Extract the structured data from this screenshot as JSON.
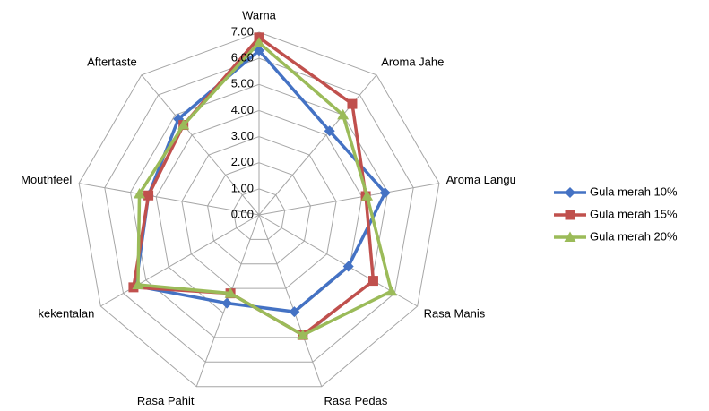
{
  "chart_data": {
    "type": "radar",
    "categories": [
      "Warna",
      "Aroma Jahe",
      "Aroma Langu",
      "Rasa Manis",
      "Rasa Pedas",
      "Rasa Pahit",
      "kekentalan",
      "Mouthfeel",
      "Aftertaste"
    ],
    "series": [
      {
        "name": "Gula merah 10%",
        "color": "#4472c4",
        "marker": "diamond",
        "values": [
          6.3,
          4.2,
          4.9,
          3.95,
          3.95,
          3.6,
          5.45,
          4.3,
          4.8
        ]
      },
      {
        "name": "Gula merah 15%",
        "color": "#c0504d",
        "marker": "square",
        "values": [
          6.8,
          5.55,
          4.15,
          5.05,
          4.9,
          3.2,
          5.55,
          4.3,
          4.5
        ]
      },
      {
        "name": "Gula merah 20%",
        "color": "#9bbb59",
        "marker": "triangle",
        "values": [
          6.6,
          5.0,
          4.2,
          5.85,
          4.9,
          3.2,
          5.35,
          4.65,
          4.5
        ]
      }
    ],
    "ylim": [
      0,
      7
    ],
    "yticks": [
      {
        "value": 0,
        "label": "0.00"
      },
      {
        "value": 1,
        "label": "1.00"
      },
      {
        "value": 2,
        "label": "2.00"
      },
      {
        "value": 3,
        "label": "3.00"
      },
      {
        "value": 4,
        "label": "4.00"
      },
      {
        "value": 5,
        "label": "5.00"
      },
      {
        "value": 6,
        "label": "6.00"
      },
      {
        "value": 7,
        "label": "7.00"
      }
    ],
    "grid": true,
    "legend": "right"
  }
}
